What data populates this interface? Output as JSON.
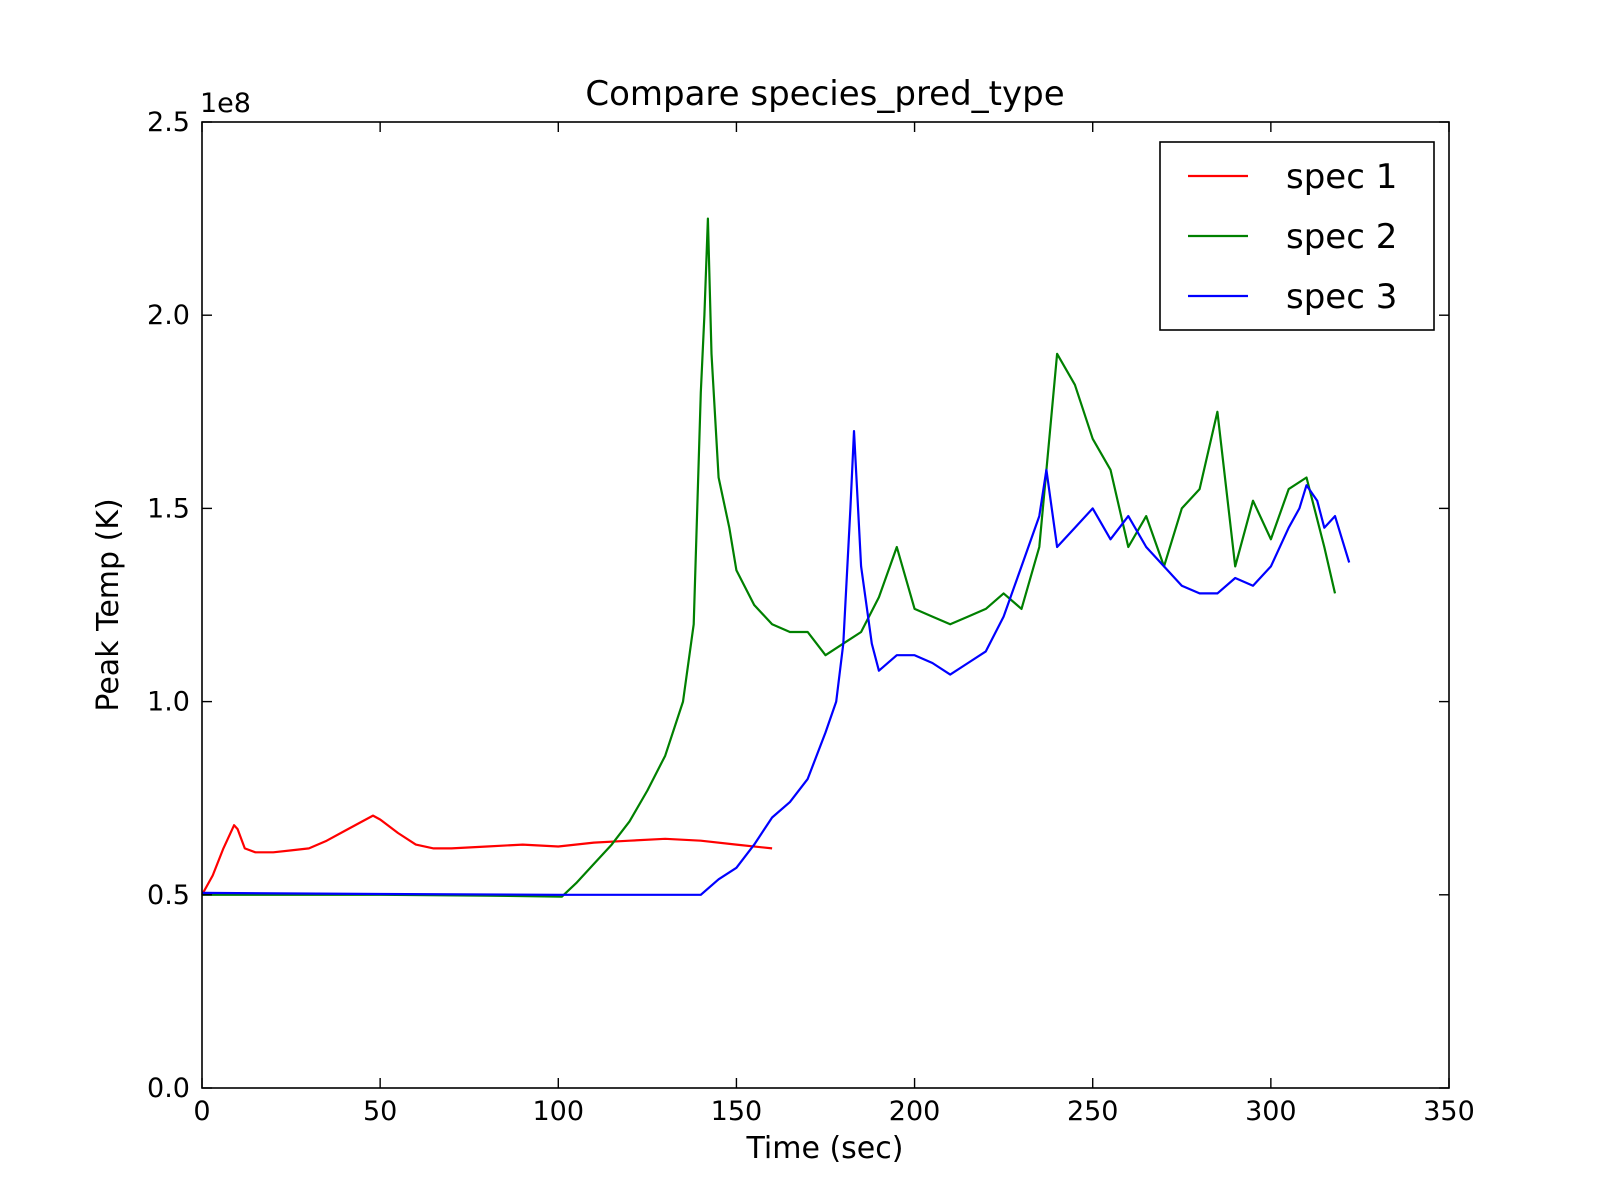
{
  "chart_data": {
    "type": "line",
    "title": "Compare species_pred_type",
    "xlabel": "Time (sec)",
    "ylabel": "Peak Temp (K)",
    "y_multiplier": "1e8",
    "xlim": [
      0,
      350
    ],
    "ylim": [
      0,
      250000000
    ],
    "x_ticks": [
      0,
      50,
      100,
      150,
      200,
      250,
      300,
      350
    ],
    "x_tick_labels": [
      "0",
      "50",
      "100",
      "150",
      "200",
      "250",
      "300",
      "350"
    ],
    "y_ticks": [
      0,
      50000000,
      100000000,
      150000000,
      200000000,
      250000000
    ],
    "y_tick_labels": [
      "0.0",
      "0.5",
      "1.0",
      "1.5",
      "2.0",
      "2.5"
    ],
    "grid": false,
    "legend_position": "top-right",
    "series": [
      {
        "name": "spec 1",
        "color": "#ff0000",
        "x": [
          0,
          3,
          6,
          9,
          10,
          12,
          15,
          20,
          25,
          30,
          35,
          40,
          45,
          48,
          50,
          55,
          60,
          65,
          70,
          80,
          90,
          100,
          110,
          120,
          130,
          140,
          150,
          160
        ],
        "y": [
          50000000,
          55000000,
          62000000,
          68000000,
          67000000,
          62000000,
          61000000,
          61000000,
          61500000,
          62000000,
          64000000,
          66500000,
          69000000,
          70500000,
          69500000,
          66000000,
          63000000,
          62000000,
          62000000,
          62500000,
          63000000,
          62500000,
          63500000,
          64000000,
          64500000,
          64000000,
          63000000,
          62000000
        ]
      },
      {
        "name": "spec 2",
        "color": "#008000",
        "x": [
          0,
          20,
          50,
          80,
          101,
          105,
          110,
          115,
          120,
          125,
          130,
          135,
          138,
          140,
          141,
          142,
          143,
          145,
          148,
          150,
          155,
          160,
          165,
          170,
          175,
          180,
          185,
          190,
          195,
          200,
          205,
          210,
          215,
          220,
          225,
          230,
          235,
          238,
          240,
          245,
          250,
          255,
          260,
          265,
          270,
          275,
          280,
          285,
          290,
          295,
          300,
          305,
          310,
          315,
          318
        ],
        "y": [
          50000000,
          50000000,
          50000000,
          49800000,
          49500000,
          53000000,
          58000000,
          63000000,
          69000000,
          77000000,
          86000000,
          100000000,
          120000000,
          180000000,
          200000000,
          225000000,
          190000000,
          158000000,
          145000000,
          134000000,
          125000000,
          120000000,
          118000000,
          118000000,
          112000000,
          115000000,
          118000000,
          127000000,
          140000000,
          124000000,
          122000000,
          120000000,
          122000000,
          124000000,
          128000000,
          124000000,
          140000000,
          170000000,
          190000000,
          182000000,
          168000000,
          160000000,
          140000000,
          148000000,
          135000000,
          150000000,
          155000000,
          175000000,
          135000000,
          152000000,
          142000000,
          155000000,
          158000000,
          140000000,
          128000000
        ]
      },
      {
        "name": "spec 3",
        "color": "#0000ff",
        "x": [
          0,
          50,
          100,
          140,
          145,
          150,
          155,
          160,
          165,
          170,
          175,
          178,
          180,
          182,
          183,
          185,
          188,
          190,
          195,
          200,
          205,
          210,
          215,
          220,
          225,
          230,
          235,
          237,
          240,
          245,
          250,
          255,
          260,
          265,
          270,
          275,
          280,
          285,
          290,
          295,
          300,
          305,
          308,
          310,
          313,
          315,
          318,
          320,
          322
        ],
        "y": [
          50500000,
          50200000,
          50000000,
          50000000,
          54000000,
          57000000,
          63000000,
          70000000,
          74000000,
          80000000,
          92000000,
          100000000,
          115000000,
          150000000,
          170000000,
          135000000,
          115000000,
          108000000,
          112000000,
          112000000,
          110000000,
          107000000,
          110000000,
          113000000,
          122000000,
          135000000,
          148000000,
          160000000,
          140000000,
          145000000,
          150000000,
          142000000,
          148000000,
          140000000,
          135000000,
          130000000,
          128000000,
          128000000,
          132000000,
          130000000,
          135000000,
          145000000,
          150000000,
          156000000,
          152000000,
          145000000,
          148000000,
          142000000,
          136000000
        ]
      }
    ]
  }
}
